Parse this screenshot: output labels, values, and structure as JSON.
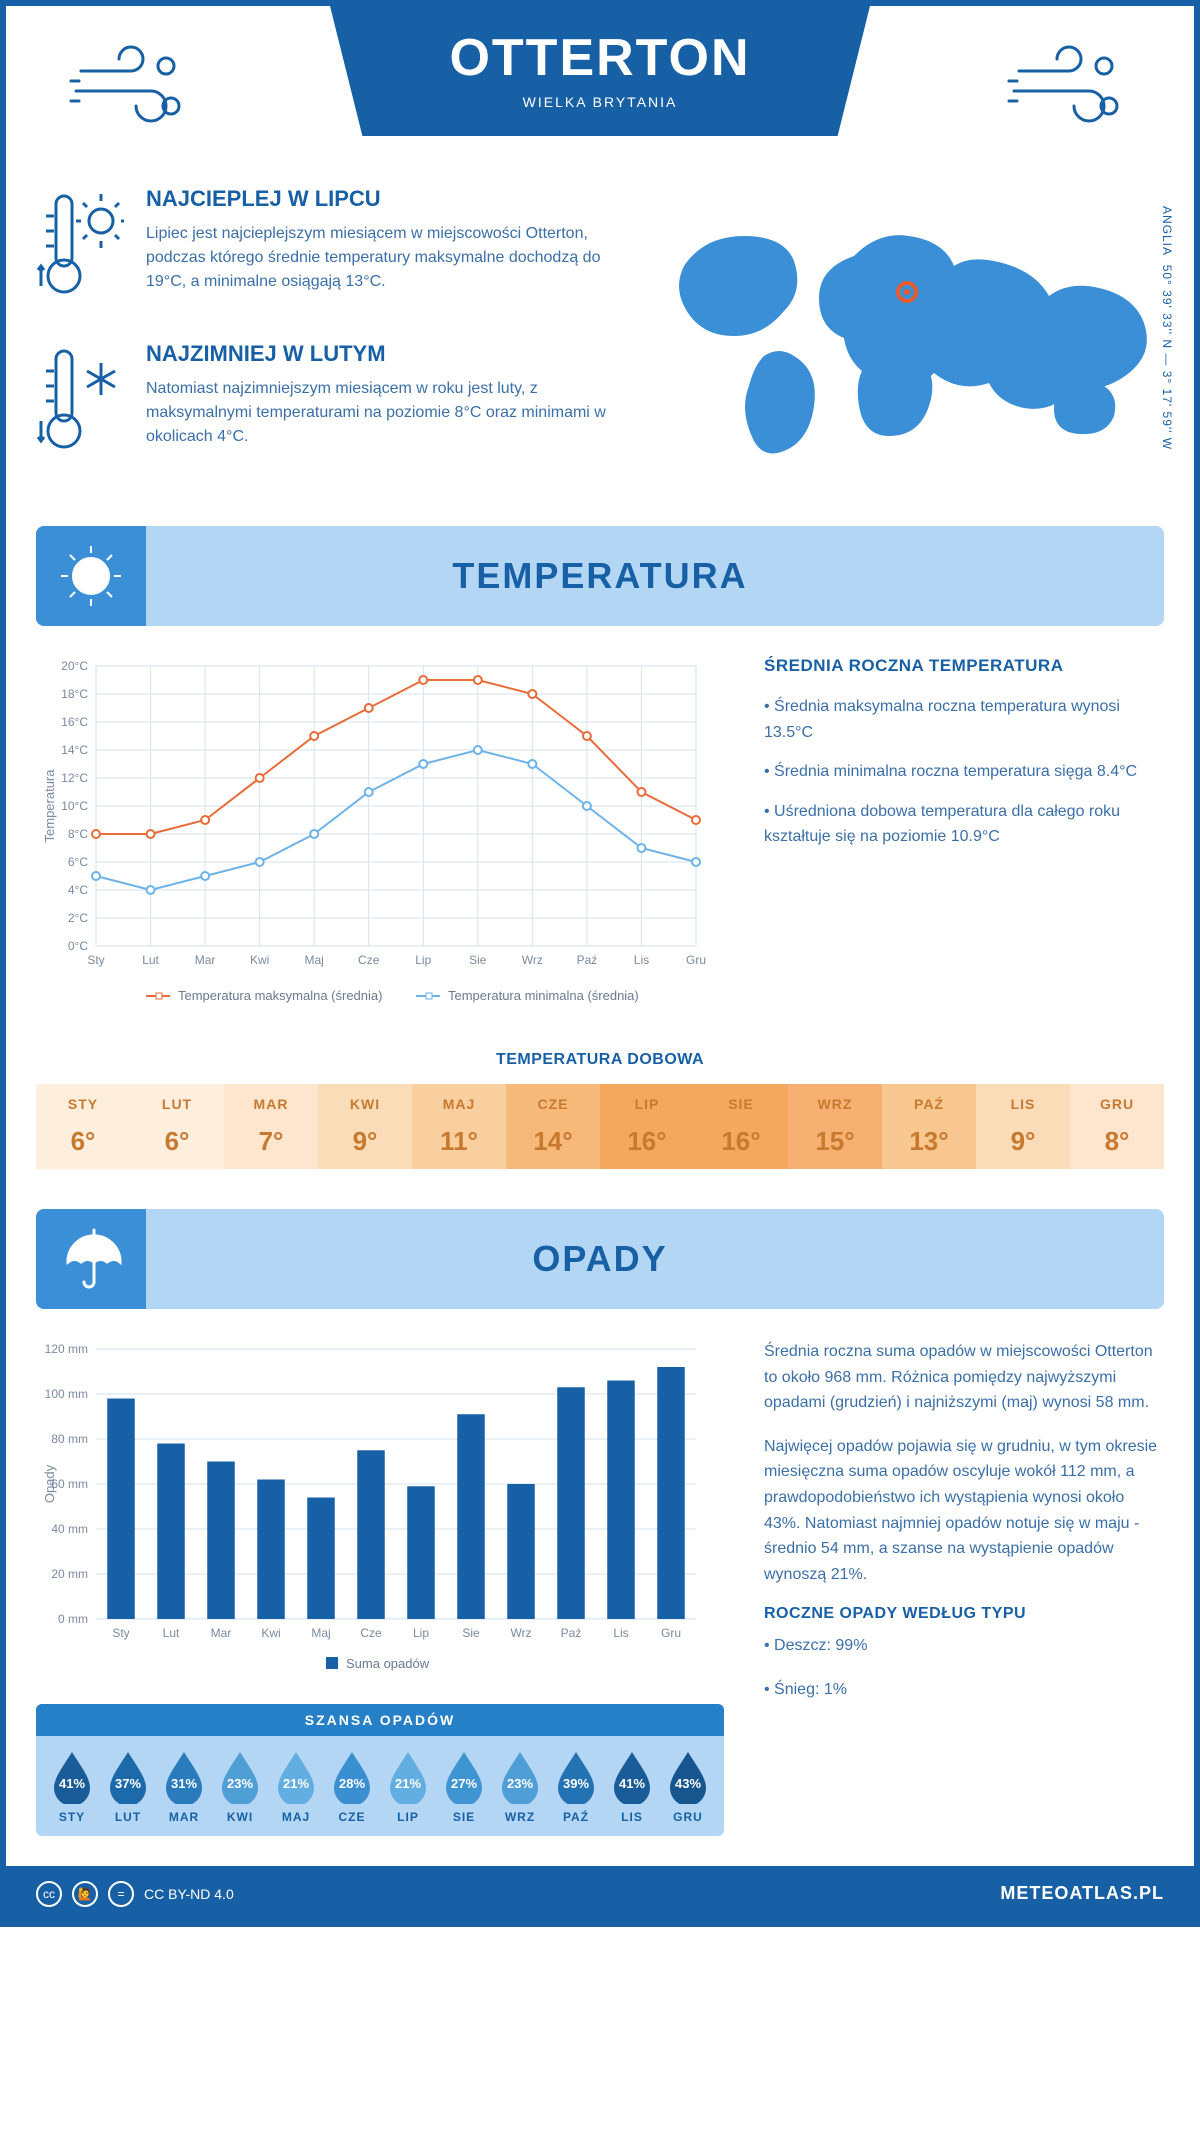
{
  "header": {
    "city": "OTTERTON",
    "country": "WIELKA BRYTANIA"
  },
  "coords": {
    "text": "50° 39' 33'' N — 3° 17' 59'' W",
    "region": "ANGLIA"
  },
  "intro": {
    "hot": {
      "title": "NAJCIEPLEJ W LIPCU",
      "text": "Lipiec jest najcieplejszym miesiącem w miejscowości Otterton, podczas którego średnie temperatury maksymalne dochodzą do 19°C, a minimalne osiągają 13°C."
    },
    "cold": {
      "title": "NAJZIMNIEJ W LUTYM",
      "text": "Natomiast najzimniejszym miesiącem w roku jest luty, z maksymalnymi temperaturami na poziomie 8°C oraz minimami w okolicach 4°C."
    }
  },
  "sections": {
    "temperature": "TEMPERATURA",
    "precipitation": "OPADY"
  },
  "temp_chart": {
    "type": "line",
    "y_title": "Temperatura",
    "ylim": [
      0,
      20
    ],
    "ytick_step": 2,
    "ytick_suffix": "°C",
    "months": [
      "Sty",
      "Lut",
      "Mar",
      "Kwi",
      "Maj",
      "Cze",
      "Lip",
      "Sie",
      "Wrz",
      "Paź",
      "Lis",
      "Gru"
    ],
    "series": [
      {
        "name": "Temperatura maksymalna (średnia)",
        "color": "#e86c3a",
        "values": [
          8,
          8,
          9,
          12,
          15,
          17,
          19,
          19,
          18,
          15,
          11,
          9
        ]
      },
      {
        "name": "Temperatura minimalna (średnia)",
        "color": "#6db3e8",
        "values": [
          5,
          4,
          5,
          6,
          8,
          11,
          13,
          14,
          13,
          10,
          7,
          6
        ]
      }
    ],
    "grid_color": "#d6e2f0",
    "background_color": "#ffffff",
    "marker_size": 4,
    "line_width": 2
  },
  "temp_side": {
    "title": "ŚREDNIA ROCZNA TEMPERATURA",
    "bullets": [
      "• Średnia maksymalna roczna temperatura wynosi 13.5°C",
      "• Średnia minimalna roczna temperatura sięga 8.4°C",
      "• Uśredniona dobowa temperatura dla całego roku kształtuje się na poziomie 10.9°C"
    ]
  },
  "daily_temp": {
    "title": "TEMPERATURA DOBOWA",
    "months": [
      "STY",
      "LUT",
      "MAR",
      "KWI",
      "MAJ",
      "CZE",
      "LIP",
      "SIE",
      "WRZ",
      "PAŹ",
      "LIS",
      "GRU"
    ],
    "values": [
      "6°",
      "6°",
      "7°",
      "9°",
      "11°",
      "14°",
      "16°",
      "16°",
      "15°",
      "13°",
      "9°",
      "8°"
    ],
    "cell_colors": [
      "#fdeedd",
      "#fdeedd",
      "#fde6cd",
      "#fbdcb8",
      "#f9cf9f",
      "#f6b97a",
      "#f4a85d",
      "#f4a85d",
      "#f6b172",
      "#f8c68f",
      "#fbdcb8",
      "#fde6cd"
    ]
  },
  "precip_chart": {
    "type": "bar",
    "y_title": "Opady",
    "ylim": [
      0,
      120
    ],
    "ytick_step": 20,
    "ytick_suffix": " mm",
    "months": [
      "Sty",
      "Lut",
      "Mar",
      "Kwi",
      "Maj",
      "Cze",
      "Lip",
      "Sie",
      "Wrz",
      "Paź",
      "Lis",
      "Gru"
    ],
    "values": [
      98,
      78,
      70,
      62,
      54,
      75,
      59,
      91,
      60,
      103,
      106,
      112
    ],
    "bar_color": "#1860a5",
    "grid_color": "#d6e2f0",
    "bar_width": 0.55,
    "legend": "Suma opadów"
  },
  "precip_text": {
    "p1": "Średnia roczna suma opadów w miejscowości Otterton to około 968 mm. Różnica pomiędzy najwyższymi opadami (grudzień) i najniższymi (maj) wynosi 58 mm.",
    "p2": "Najwięcej opadów pojawia się w grudniu, w tym okresie miesięczna suma opadów oscyluje wokół 112 mm, a prawdopodobieństwo ich wystąpienia wynosi około 43%. Natomiast najmniej opadów notuje się w maju - średnio 54 mm, a szanse na wystąpienie opadów wynoszą 21%.",
    "type_title": "ROCZNE OPADY WEDŁUG TYPU",
    "types": [
      "• Deszcz: 99%",
      "• Śnieg: 1%"
    ]
  },
  "chance": {
    "title": "SZANSA OPADÓW",
    "months": [
      "STY",
      "LUT",
      "MAR",
      "KWI",
      "MAJ",
      "CZE",
      "LIP",
      "SIE",
      "WRZ",
      "PAŹ",
      "LIS",
      "GRU"
    ],
    "values": [
      41,
      37,
      31,
      23,
      21,
      28,
      21,
      27,
      23,
      39,
      41,
      43
    ],
    "colors": [
      "#195c97",
      "#1d6aaa",
      "#2a7bbc",
      "#4f9fd6",
      "#62aee0",
      "#3a8fd0",
      "#62aee0",
      "#3f94d2",
      "#4f9fd6",
      "#2272b4",
      "#195c97",
      "#16558e"
    ]
  },
  "footer": {
    "license": "CC BY-ND 4.0",
    "site": "METEOATLAS.PL"
  }
}
